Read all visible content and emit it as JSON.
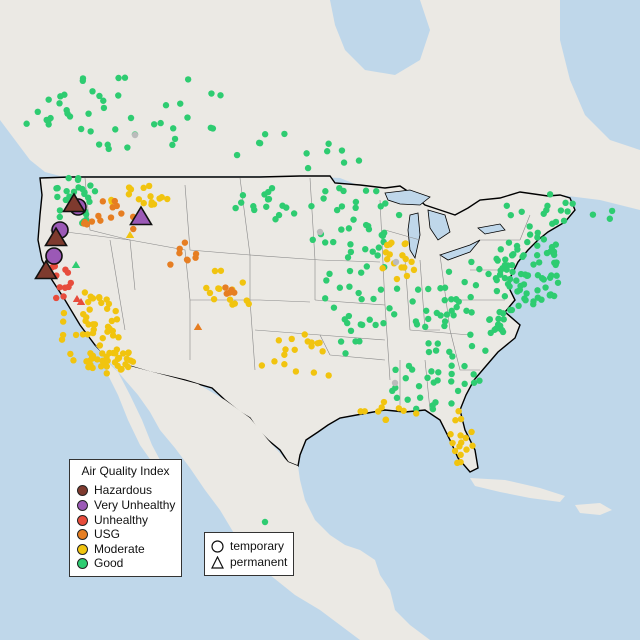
{
  "legend": {
    "title": "Air Quality Index",
    "categories": [
      {
        "key": "hazardous",
        "label": "Hazardous",
        "color": "#7e3a2e"
      },
      {
        "key": "very_unhealthy",
        "label": "Very Unhealthy",
        "color": "#9b59b6"
      },
      {
        "key": "unhealthy",
        "label": "Unhealthy",
        "color": "#e74c3c"
      },
      {
        "key": "usg",
        "label": "USG",
        "color": "#e67e22"
      },
      {
        "key": "moderate",
        "label": "Moderate",
        "color": "#f1c40f"
      },
      {
        "key": "good",
        "label": "Good",
        "color": "#2ecc71"
      }
    ]
  },
  "type_legend": {
    "temporary": "temporary",
    "permanent": "permanent"
  },
  "colors": {
    "water": "#bfd7ea",
    "land": "#ebe9e4",
    "border": "#000000",
    "state_line": "#888888",
    "no_data": "#bbbbbb"
  },
  "markers_summary": {
    "shown_categories": [
      "Hazardous",
      "Very Unhealthy",
      "Unhealthy",
      "USG",
      "Moderate",
      "Good"
    ],
    "marker_types": [
      "temporary",
      "permanent"
    ]
  }
}
